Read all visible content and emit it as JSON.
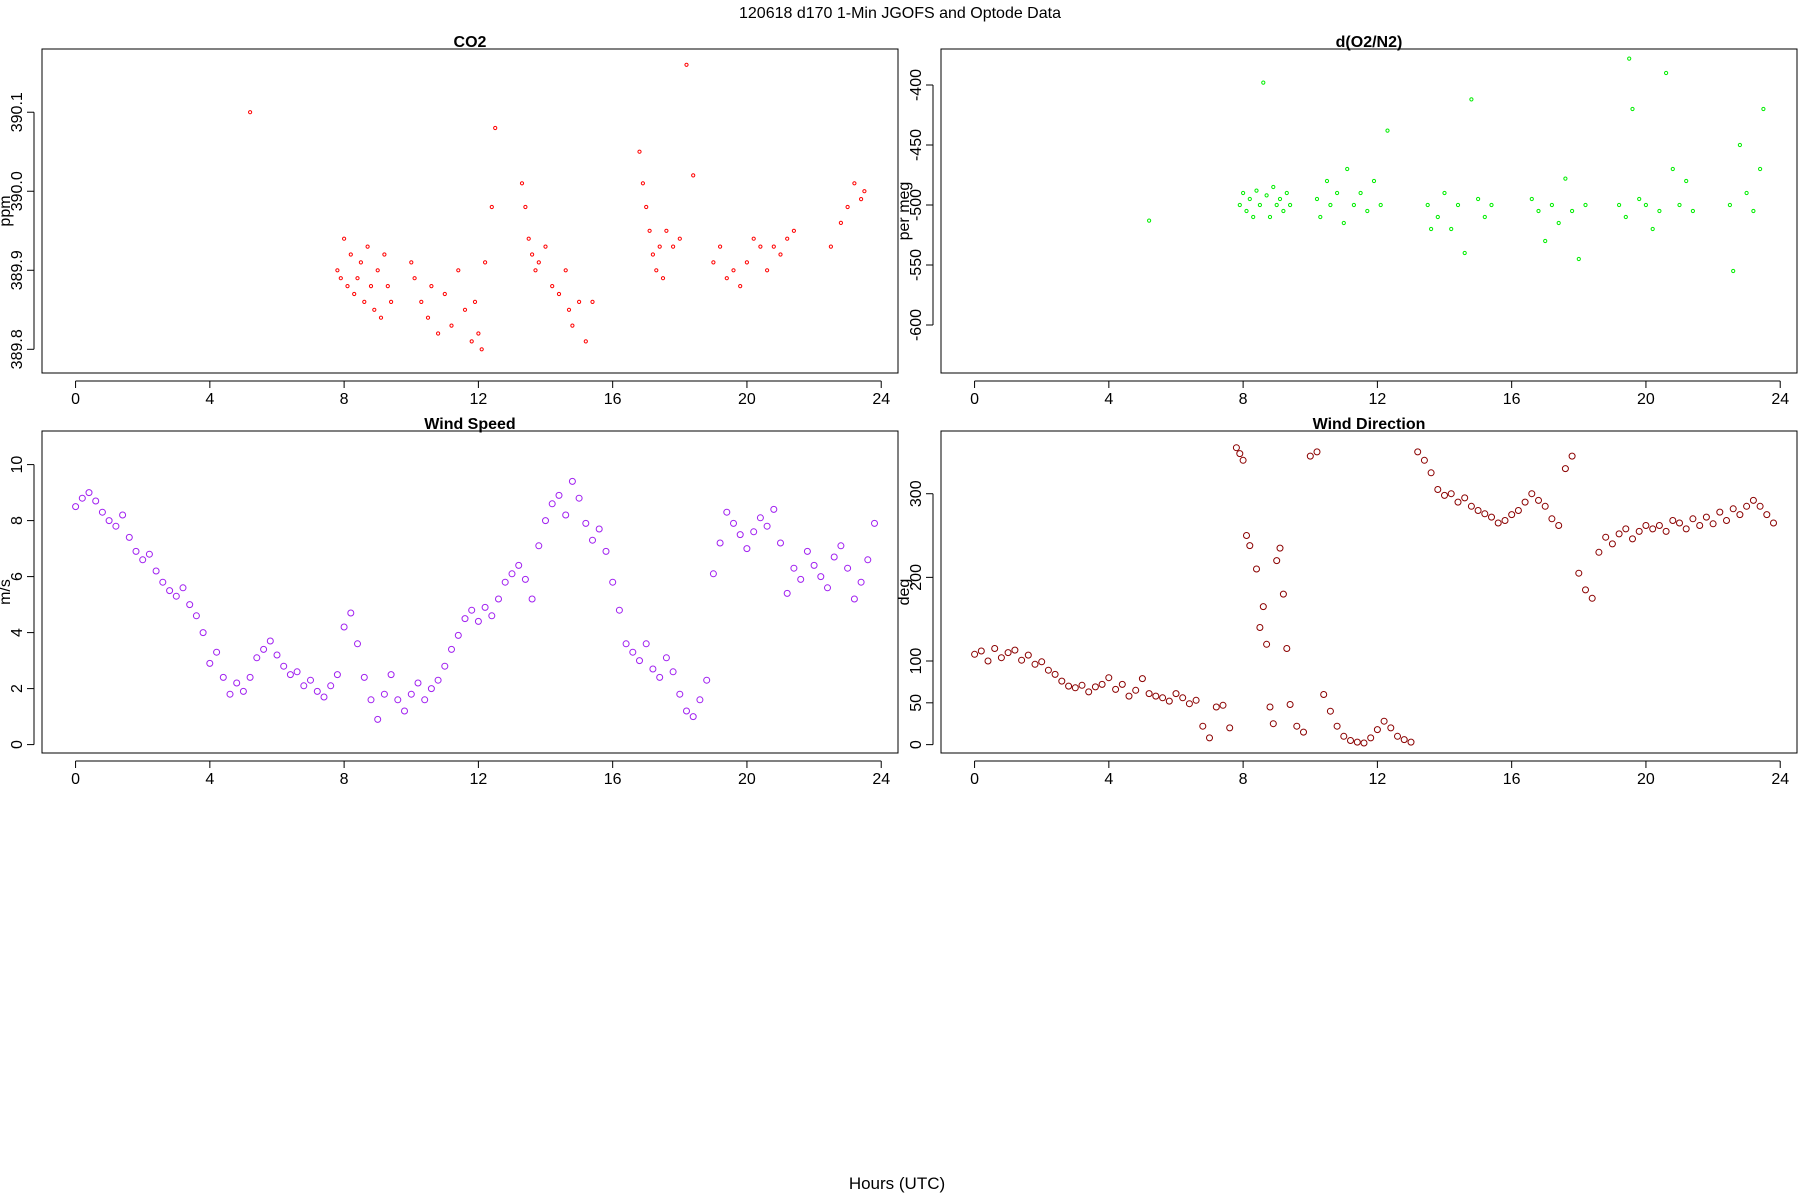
{
  "figure": {
    "title": "120618   d170   1-Min  JGOFS and Optode Data",
    "xlabel": "Hours (UTC)"
  },
  "chart_data": [
    {
      "id": "co2",
      "type": "scatter",
      "title": "CO2",
      "xlabel": "Hours (UTC)",
      "ylabel": "ppm",
      "xlim": [
        -1,
        24.5
      ],
      "ylim": [
        389.77,
        390.18
      ],
      "xticks": [
        0,
        4,
        8,
        12,
        16,
        20,
        24
      ],
      "yticks": [
        389.8,
        389.9,
        390.0,
        390.1
      ],
      "ytick_labels": [
        "389.8",
        "389.9",
        "390.0",
        "390.1"
      ],
      "color": "#ff0000",
      "marker_size": 1.6,
      "series": [
        {
          "x": [
            5.2,
            7.8,
            7.9,
            8.0,
            8.1,
            8.2,
            8.3,
            8.4,
            8.5,
            8.6,
            8.7,
            8.8,
            8.9,
            9.0,
            9.1,
            9.2,
            9.3,
            9.4,
            10.0,
            10.1,
            10.3,
            10.5,
            10.6,
            10.8,
            11.0,
            11.2,
            11.4,
            11.6,
            11.8,
            11.9,
            12.0,
            12.1,
            12.2,
            12.4,
            12.5,
            13.3,
            13.4,
            13.5,
            13.6,
            13.7,
            13.8,
            14.0,
            14.2,
            14.4,
            14.6,
            14.7,
            14.8,
            15.0,
            15.2,
            15.4,
            16.8,
            16.9,
            17.0,
            17.1,
            17.2,
            17.3,
            17.4,
            17.5,
            17.6,
            17.8,
            18.0,
            18.2,
            18.4,
            19.0,
            19.2,
            19.4,
            19.6,
            19.8,
            20.0,
            20.2,
            20.4,
            20.6,
            20.8,
            21.0,
            21.2,
            21.4,
            22.5,
            22.8,
            23.0,
            23.2,
            23.4,
            23.5
          ],
          "y": [
            390.1,
            389.9,
            389.89,
            389.94,
            389.88,
            389.92,
            389.87,
            389.89,
            389.91,
            389.86,
            389.93,
            389.88,
            389.85,
            389.9,
            389.84,
            389.92,
            389.88,
            389.86,
            389.91,
            389.89,
            389.86,
            389.84,
            389.88,
            389.82,
            389.87,
            389.83,
            389.9,
            389.85,
            389.81,
            389.86,
            389.82,
            389.8,
            389.91,
            389.98,
            390.08,
            390.01,
            389.98,
            389.94,
            389.92,
            389.9,
            389.91,
            389.93,
            389.88,
            389.87,
            389.9,
            389.85,
            389.83,
            389.86,
            389.81,
            389.86,
            390.05,
            390.01,
            389.98,
            389.95,
            389.92,
            389.9,
            389.93,
            389.89,
            389.95,
            389.93,
            389.94,
            390.16,
            390.02,
            389.91,
            389.93,
            389.89,
            389.9,
            389.88,
            389.91,
            389.94,
            389.93,
            389.9,
            389.93,
            389.92,
            389.94,
            389.95,
            389.93,
            389.96,
            389.98,
            390.01,
            389.99,
            390.0
          ]
        }
      ]
    },
    {
      "id": "d-o2-n2",
      "type": "scatter",
      "title": "d(O2/N2)",
      "xlabel": "Hours (UTC)",
      "ylabel": "per meg",
      "xlim": [
        -1,
        24.5
      ],
      "ylim": [
        -640,
        -370
      ],
      "xticks": [
        0,
        4,
        8,
        12,
        16,
        20,
        24
      ],
      "yticks": [
        -600,
        -550,
        -500,
        -450,
        -400
      ],
      "ytick_labels": [
        "-600",
        "-550",
        "-500",
        "-450",
        "-400"
      ],
      "color": "#00ee00",
      "marker_size": 1.6,
      "series": [
        {
          "x": [
            5.2,
            7.9,
            8.0,
            8.1,
            8.2,
            8.3,
            8.4,
            8.5,
            8.6,
            8.7,
            8.8,
            8.9,
            9.0,
            9.1,
            9.2,
            9.3,
            9.4,
            10.2,
            10.3,
            10.5,
            10.6,
            10.8,
            11.0,
            11.1,
            11.3,
            11.5,
            11.7,
            11.9,
            12.1,
            12.3,
            13.5,
            13.6,
            13.8,
            14.0,
            14.2,
            14.4,
            14.6,
            14.8,
            15.0,
            15.2,
            15.4,
            16.6,
            16.8,
            17.0,
            17.2,
            17.4,
            17.6,
            17.8,
            18.0,
            18.2,
            19.2,
            19.4,
            19.5,
            19.6,
            19.8,
            20.0,
            20.2,
            20.4,
            20.6,
            20.8,
            21.0,
            21.2,
            21.4,
            22.5,
            22.6,
            22.8,
            23.0,
            23.2,
            23.4,
            23.5
          ],
          "y": [
            -513,
            -500,
            -490,
            -505,
            -495,
            -510,
            -488,
            -500,
            -398,
            -492,
            -510,
            -485,
            -500,
            -495,
            -505,
            -490,
            -500,
            -495,
            -510,
            -480,
            -500,
            -490,
            -515,
            -470,
            -500,
            -490,
            -505,
            -480,
            -500,
            -438,
            -500,
            -520,
            -510,
            -490,
            -520,
            -500,
            -540,
            -412,
            -495,
            -510,
            -500,
            -495,
            -505,
            -530,
            -500,
            -515,
            -478,
            -505,
            -545,
            -500,
            -500,
            -510,
            -378,
            -420,
            -495,
            -500,
            -520,
            -505,
            -390,
            -470,
            -500,
            -480,
            -505,
            -500,
            -555,
            -450,
            -490,
            -505,
            -470,
            -420
          ]
        }
      ]
    },
    {
      "id": "wind-speed",
      "type": "scatter",
      "title": "Wind Speed",
      "xlabel": "Hours (UTC)",
      "ylabel": "m/s",
      "xlim": [
        -1,
        24.5
      ],
      "ylim": [
        -0.3,
        11.2
      ],
      "xticks": [
        0,
        4,
        8,
        12,
        16,
        20,
        24
      ],
      "yticks": [
        0,
        2,
        4,
        6,
        8,
        10
      ],
      "ytick_labels": [
        "0",
        "2",
        "4",
        "6",
        "8",
        "10"
      ],
      "color": "#a020f0",
      "marker_size": 3,
      "series": [
        {
          "x": [
            0.0,
            0.2,
            0.4,
            0.6,
            0.8,
            1.0,
            1.2,
            1.4,
            1.6,
            1.8,
            2.0,
            2.2,
            2.4,
            2.6,
            2.8,
            3.0,
            3.2,
            3.4,
            3.6,
            3.8,
            4.0,
            4.2,
            4.4,
            4.6,
            4.8,
            5.0,
            5.2,
            5.4,
            5.6,
            5.8,
            6.0,
            6.2,
            6.4,
            6.6,
            6.8,
            7.0,
            7.2,
            7.4,
            7.6,
            7.8,
            8.0,
            8.2,
            8.4,
            8.6,
            8.8,
            9.0,
            9.2,
            9.4,
            9.6,
            9.8,
            10.0,
            10.2,
            10.4,
            10.6,
            10.8,
            11.0,
            11.2,
            11.4,
            11.6,
            11.8,
            12.0,
            12.2,
            12.4,
            12.6,
            12.8,
            13.0,
            13.2,
            13.4,
            13.6,
            13.8,
            14.0,
            14.2,
            14.4,
            14.6,
            14.8,
            15.0,
            15.2,
            15.4,
            15.6,
            15.8,
            16.0,
            16.2,
            16.4,
            16.6,
            16.8,
            17.0,
            17.2,
            17.4,
            17.6,
            17.8,
            18.0,
            18.2,
            18.4,
            18.6,
            18.8,
            19.0,
            19.2,
            19.4,
            19.6,
            19.8,
            20.0,
            20.2,
            20.4,
            20.6,
            20.8,
            21.0,
            21.2,
            21.4,
            21.6,
            21.8,
            22.0,
            22.2,
            22.4,
            22.6,
            22.8,
            23.0,
            23.2,
            23.4,
            23.6,
            23.8
          ],
          "y": [
            8.5,
            8.8,
            9.0,
            8.7,
            8.3,
            8.0,
            7.8,
            8.2,
            7.4,
            6.9,
            6.6,
            6.8,
            6.2,
            5.8,
            5.5,
            5.3,
            5.6,
            5.0,
            4.6,
            4.0,
            2.9,
            3.3,
            2.4,
            1.8,
            2.2,
            1.9,
            2.4,
            3.1,
            3.4,
            3.7,
            3.2,
            2.8,
            2.5,
            2.6,
            2.1,
            2.3,
            1.9,
            1.7,
            2.1,
            2.5,
            4.2,
            4.7,
            3.6,
            2.4,
            1.6,
            0.9,
            1.8,
            2.5,
            1.6,
            1.2,
            1.8,
            2.2,
            1.6,
            2.0,
            2.3,
            2.8,
            3.4,
            3.9,
            4.5,
            4.8,
            4.4,
            4.9,
            4.6,
            5.2,
            5.8,
            6.1,
            6.4,
            5.9,
            5.2,
            7.1,
            8.0,
            8.6,
            8.9,
            8.2,
            9.4,
            8.8,
            7.9,
            7.3,
            7.7,
            6.9,
            5.8,
            4.8,
            3.6,
            3.3,
            3.0,
            3.6,
            2.7,
            2.4,
            3.1,
            2.6,
            1.8,
            1.2,
            1.0,
            1.6,
            2.3,
            6.1,
            7.2,
            8.3,
            7.9,
            7.5,
            7.0,
            7.6,
            8.1,
            7.8,
            8.4,
            7.2,
            5.4,
            6.3,
            5.9,
            6.9,
            6.4,
            6.0,
            5.6,
            6.7,
            7.1,
            6.3,
            5.2,
            5.8,
            6.6,
            7.9
          ]
        }
      ]
    },
    {
      "id": "wind-direction",
      "type": "scatter",
      "title": "Wind Direction",
      "xlabel": "Hours (UTC)",
      "ylabel": "deg",
      "xlim": [
        -1,
        24.5
      ],
      "ylim": [
        -10,
        375
      ],
      "xticks": [
        0,
        4,
        8,
        12,
        16,
        20,
        24
      ],
      "yticks": [
        0,
        50,
        100,
        200,
        300
      ],
      "ytick_labels": [
        "0",
        "50",
        "100",
        "200",
        "300"
      ],
      "color": "#8b0000",
      "marker_size": 3,
      "series": [
        {
          "x": [
            0.0,
            0.2,
            0.4,
            0.6,
            0.8,
            1.0,
            1.2,
            1.4,
            1.6,
            1.8,
            2.0,
            2.2,
            2.4,
            2.6,
            2.8,
            3.0,
            3.2,
            3.4,
            3.6,
            3.8,
            4.0,
            4.2,
            4.4,
            4.6,
            4.8,
            5.0,
            5.2,
            5.4,
            5.6,
            5.8,
            6.0,
            6.2,
            6.4,
            6.6,
            6.8,
            7.0,
            7.2,
            7.4,
            7.6,
            7.8,
            7.9,
            8.0,
            8.1,
            8.2,
            8.4,
            8.5,
            8.6,
            8.7,
            8.8,
            8.9,
            9.0,
            9.1,
            9.2,
            9.3,
            9.4,
            9.6,
            9.8,
            10.0,
            10.2,
            10.4,
            10.6,
            10.8,
            11.0,
            11.2,
            11.4,
            11.6,
            11.8,
            12.0,
            12.2,
            12.4,
            12.6,
            12.8,
            13.0,
            13.2,
            13.4,
            13.6,
            13.8,
            14.0,
            14.2,
            14.4,
            14.6,
            14.8,
            15.0,
            15.2,
            15.4,
            15.6,
            15.8,
            16.0,
            16.2,
            16.4,
            16.6,
            16.8,
            17.0,
            17.2,
            17.4,
            17.6,
            17.8,
            18.0,
            18.2,
            18.4,
            18.6,
            18.8,
            19.0,
            19.2,
            19.4,
            19.6,
            19.8,
            20.0,
            20.2,
            20.4,
            20.6,
            20.8,
            21.0,
            21.2,
            21.4,
            21.6,
            21.8,
            22.0,
            22.2,
            22.4,
            22.6,
            22.8,
            23.0,
            23.2,
            23.4,
            23.6,
            23.8
          ],
          "y": [
            108,
            112,
            100,
            115,
            104,
            110,
            113,
            101,
            107,
            96,
            99,
            89,
            84,
            76,
            70,
            68,
            71,
            63,
            69,
            72,
            80,
            66,
            72,
            58,
            65,
            79,
            61,
            58,
            56,
            52,
            61,
            56,
            49,
            53,
            22,
            8,
            45,
            47,
            20,
            355,
            348,
            340,
            250,
            238,
            210,
            140,
            165,
            120,
            45,
            25,
            220,
            235,
            180,
            115,
            48,
            22,
            15,
            345,
            350,
            60,
            40,
            22,
            10,
            5,
            3,
            2,
            8,
            18,
            28,
            20,
            10,
            6,
            3,
            350,
            340,
            325,
            305,
            298,
            300,
            290,
            295,
            285,
            280,
            276,
            272,
            265,
            268,
            275,
            280,
            290,
            300,
            292,
            285,
            270,
            262,
            330,
            345,
            205,
            185,
            175,
            230,
            248,
            240,
            252,
            258,
            246,
            255,
            262,
            258,
            262,
            255,
            268,
            265,
            258,
            270,
            262,
            272,
            264,
            278,
            268,
            282,
            275,
            285,
            292,
            285,
            275,
            265
          ]
        }
      ]
    }
  ]
}
